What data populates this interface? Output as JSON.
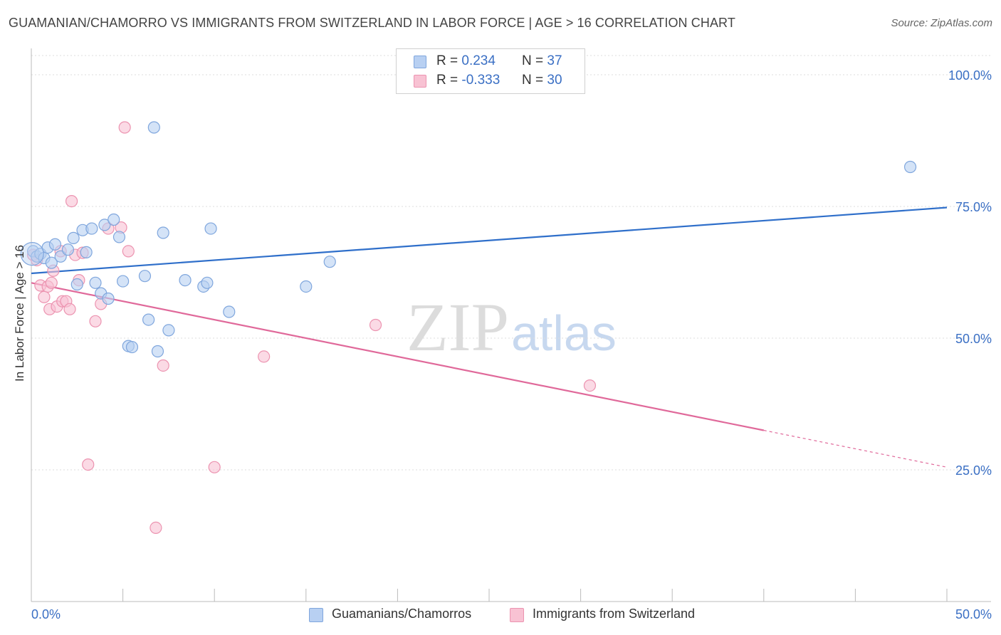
{
  "header": {
    "title": "GUAMANIAN/CHAMORRO VS IMMIGRANTS FROM SWITZERLAND IN LABOR FORCE | AGE > 16 CORRELATION CHART",
    "source": "Source: ZipAtlas.com"
  },
  "watermark": {
    "zip": "ZIP",
    "atlas": "atlas"
  },
  "colors": {
    "blue_fill": "#b8d0f2",
    "blue_stroke": "#7fa6dd",
    "blue_line": "#2f6fca",
    "pink_fill": "#f8c2d3",
    "pink_stroke": "#ec93b0",
    "pink_line": "#e0699a",
    "tick_label": "#3a6fc4",
    "grid": "#dcdcdc"
  },
  "legend_top": [
    {
      "r_label": "R =",
      "r_value": "0.234",
      "n_label": "N =",
      "n_value": "37"
    },
    {
      "r_label": "R =",
      "r_value": "-0.333",
      "n_label": "N =",
      "n_value": "30"
    }
  ],
  "chart_data": {
    "type": "scatter",
    "title": "GUAMANIAN/CHAMORRO VS IMMIGRANTS FROM SWITZERLAND IN LABOR FORCE | AGE > 16 CORRELATION CHART",
    "xlabel": "",
    "ylabel": "In Labor Force | Age > 16",
    "xlim": [
      0,
      50
    ],
    "ylim": [
      0,
      105
    ],
    "x_tick_labels": [
      {
        "value": 0,
        "label": "0.0%"
      },
      {
        "value": 50,
        "label": "50.0%"
      }
    ],
    "y_tick_labels": [
      {
        "value": 100,
        "label": "100.0%"
      },
      {
        "value": 75,
        "label": "75.0%"
      },
      {
        "value": 50,
        "label": "50.0%"
      },
      {
        "value": 25,
        "label": "25.0%"
      }
    ],
    "x_minor_ticks": [
      0,
      5,
      10,
      15,
      20,
      25,
      30,
      35,
      40,
      45,
      50
    ],
    "grid": true,
    "legend_position": "bottom",
    "series": [
      {
        "name": "Guamanians/Chamorros",
        "color": "#7fa6dd",
        "points": [
          [
            0.1,
            66.5
          ],
          [
            0.3,
            65.5
          ],
          [
            0.5,
            66.0
          ],
          [
            0.7,
            65.2
          ],
          [
            0.9,
            67.2
          ],
          [
            1.1,
            64.3
          ],
          [
            1.3,
            67.8
          ],
          [
            1.6,
            65.5
          ],
          [
            2.0,
            66.8
          ],
          [
            2.3,
            69.0
          ],
          [
            2.5,
            60.2
          ],
          [
            2.8,
            70.5
          ],
          [
            3.0,
            66.3
          ],
          [
            3.3,
            70.8
          ],
          [
            3.5,
            60.5
          ],
          [
            3.8,
            58.5
          ],
          [
            4.0,
            71.5
          ],
          [
            4.2,
            57.5
          ],
          [
            4.5,
            72.5
          ],
          [
            4.8,
            69.2
          ],
          [
            5.0,
            60.8
          ],
          [
            5.3,
            48.5
          ],
          [
            5.5,
            48.3
          ],
          [
            6.2,
            61.8
          ],
          [
            6.4,
            53.5
          ],
          [
            6.7,
            90.0
          ],
          [
            6.9,
            47.5
          ],
          [
            7.2,
            70.0
          ],
          [
            7.5,
            51.5
          ],
          [
            8.4,
            61.0
          ],
          [
            9.4,
            59.8
          ],
          [
            9.6,
            60.5
          ],
          [
            9.8,
            70.8
          ],
          [
            10.8,
            55.0
          ],
          [
            15.0,
            59.8
          ],
          [
            16.3,
            64.5
          ],
          [
            48.0,
            82.5
          ]
        ],
        "trend": {
          "x0": 0,
          "y0": 62.3,
          "x1": 50,
          "y1": 74.8
        }
      },
      {
        "name": "Immigrants from Switzerland",
        "color": "#ec93b0",
        "points": [
          [
            0.1,
            65.8
          ],
          [
            0.3,
            64.8
          ],
          [
            0.5,
            60.0
          ],
          [
            0.7,
            57.8
          ],
          [
            0.9,
            59.8
          ],
          [
            1.0,
            55.5
          ],
          [
            1.2,
            62.8
          ],
          [
            1.4,
            56.0
          ],
          [
            1.6,
            66.5
          ],
          [
            1.7,
            57.0
          ],
          [
            1.9,
            57.0
          ],
          [
            2.1,
            55.5
          ],
          [
            2.2,
            76.0
          ],
          [
            2.4,
            65.8
          ],
          [
            2.6,
            61.0
          ],
          [
            2.8,
            66.2
          ],
          [
            3.5,
            53.2
          ],
          [
            3.8,
            56.5
          ],
          [
            4.2,
            70.8
          ],
          [
            4.9,
            71.0
          ],
          [
            5.1,
            90.0
          ],
          [
            5.3,
            66.5
          ],
          [
            6.8,
            14.0
          ],
          [
            7.2,
            44.8
          ],
          [
            10.0,
            25.5
          ],
          [
            12.7,
            46.5
          ],
          [
            18.8,
            52.5
          ],
          [
            30.5,
            41.0
          ],
          [
            3.1,
            26.0
          ],
          [
            1.1,
            60.5
          ]
        ],
        "trend": {
          "x0": 0,
          "y0": 60.5,
          "x1": 50,
          "y1": 25.5,
          "solid_until_x": 40
        }
      }
    ]
  }
}
